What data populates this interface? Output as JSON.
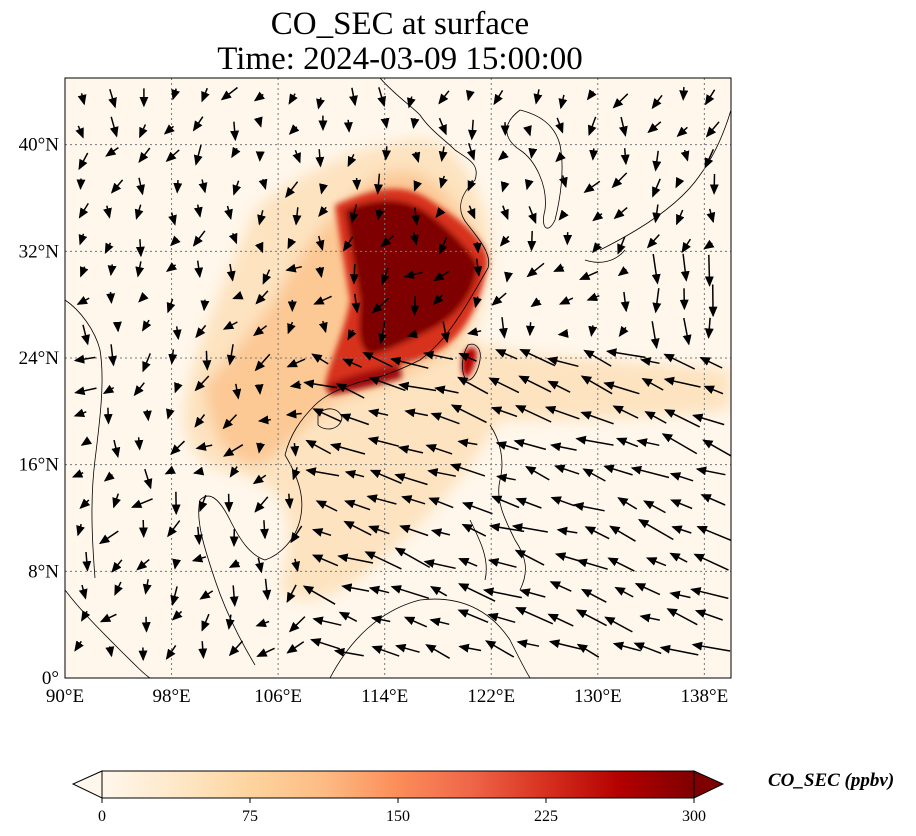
{
  "title": {
    "line1": "CO_SEC at surface",
    "line2": "Time: 2024-03-09 15:00:00"
  },
  "map": {
    "lon_range": [
      90,
      140
    ],
    "lat_range": [
      0,
      45
    ],
    "x_ticks": [
      "90°E",
      "98°E",
      "106°E",
      "114°E",
      "122°E",
      "130°E",
      "138°E"
    ],
    "y_ticks": [
      "0°",
      "8°N",
      "16°N",
      "24°N",
      "32°N",
      "40°N"
    ],
    "x_tick_values": [
      90,
      98,
      106,
      114,
      122,
      130,
      138
    ],
    "y_tick_values": [
      0,
      8,
      16,
      24,
      32,
      40
    ],
    "gridlines": "dotted"
  },
  "colorbar": {
    "label": "CO_SEC (ppbv)",
    "ticks": [
      "0",
      "75",
      "150",
      "225",
      "300"
    ],
    "range": [
      0,
      300
    ],
    "colormap": "OrRd",
    "extend": "both",
    "colors": [
      "#fff7ec",
      "#fee8c8",
      "#fdd49e",
      "#fdbb84",
      "#fc8d59",
      "#ef6548",
      "#d7301f",
      "#b30000",
      "#7f0000"
    ]
  }
}
